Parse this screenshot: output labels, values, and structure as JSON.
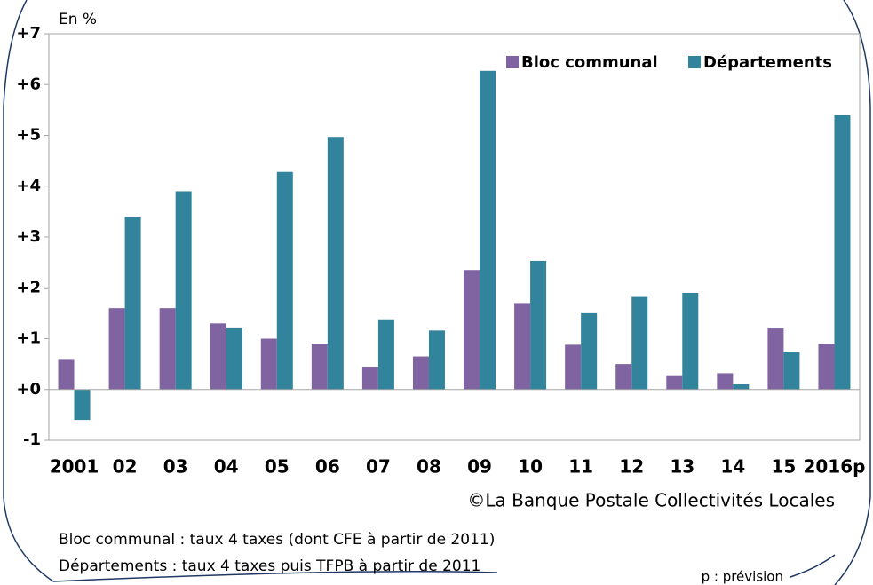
{
  "chart_data": {
    "type": "bar",
    "y_label": "En %",
    "categories": [
      "2001",
      "02",
      "03",
      "04",
      "05",
      "06",
      "07",
      "08",
      "09",
      "10",
      "11",
      "12",
      "13",
      "14",
      "15",
      "2016p"
    ],
    "series": [
      {
        "name": "Bloc communal",
        "color": "#8064a2",
        "values": [
          0.6,
          1.6,
          1.6,
          1.3,
          1.0,
          0.9,
          0.45,
          0.65,
          2.35,
          1.7,
          0.88,
          0.5,
          0.28,
          0.32,
          1.2,
          0.9
        ]
      },
      {
        "name": "Départements",
        "color": "#31849b",
        "values": [
          -0.6,
          3.4,
          3.9,
          1.22,
          4.28,
          4.97,
          1.38,
          1.16,
          6.27,
          2.53,
          1.5,
          1.82,
          1.9,
          0.1,
          0.73,
          5.4
        ]
      }
    ],
    "ylim": [
      -1,
      7
    ],
    "yticks": [
      {
        "value": 7,
        "label": "+7"
      },
      {
        "value": 6,
        "label": "+6"
      },
      {
        "value": 5,
        "label": "+5"
      },
      {
        "value": 4,
        "label": "+4"
      },
      {
        "value": 3,
        "label": "+3"
      },
      {
        "value": 2,
        "label": "+2"
      },
      {
        "value": 1,
        "label": "+1"
      },
      {
        "value": 0,
        "label": "+0"
      },
      -1
    ],
    "grid": false,
    "legend": "top-right",
    "source": "©La Banque Postale Collectivités Locales",
    "notes": [
      "Bloc communal : taux 4 taxes (dont CFE à partir de 2011)",
      "Départements : taux 4 taxes puis TFPB à partir de 2011"
    ],
    "footnote": "p : prévision"
  }
}
